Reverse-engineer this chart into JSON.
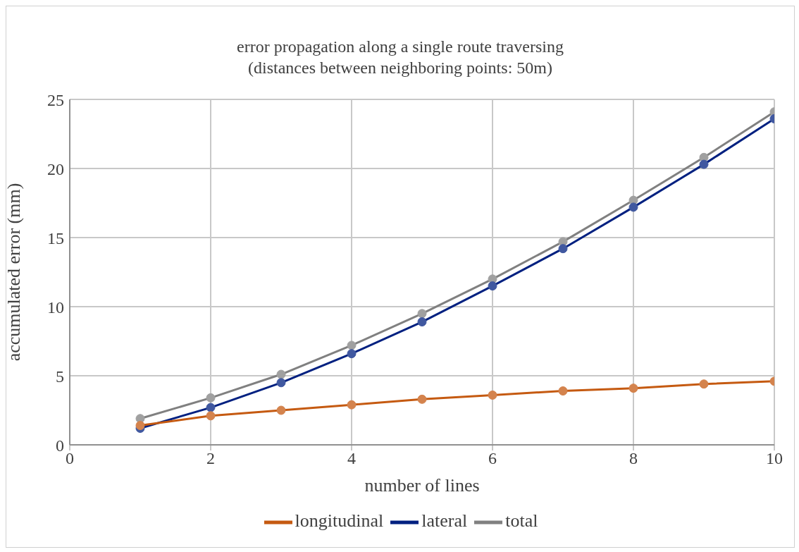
{
  "chart_data": {
    "type": "line",
    "title": "error propagation along a single route traversing\n(distances between neighboring points: 50m)",
    "xlabel": "number of lines",
    "ylabel": "accumulated error (mm)",
    "x": [
      1,
      2,
      3,
      4,
      5,
      6,
      7,
      8,
      9,
      10
    ],
    "series": [
      {
        "name": "longitudinal",
        "color": "#c55a11",
        "values": [
          1.4,
          2.1,
          2.5,
          2.9,
          3.3,
          3.6,
          3.9,
          4.1,
          4.4,
          4.6
        ]
      },
      {
        "name": "lateral",
        "color": "#002080",
        "values": [
          1.2,
          2.7,
          4.5,
          6.6,
          8.9,
          11.5,
          14.2,
          17.2,
          20.3,
          23.6
        ]
      },
      {
        "name": "total",
        "color": "#808080",
        "values": [
          1.9,
          3.4,
          5.1,
          7.2,
          9.5,
          12.0,
          14.7,
          17.7,
          20.8,
          24.1
        ]
      }
    ],
    "xlim": [
      0,
      10
    ],
    "xticks": [
      0,
      2,
      4,
      6,
      8,
      10
    ],
    "ylim": [
      0,
      25
    ],
    "yticks": [
      0,
      5,
      10,
      15,
      20,
      25
    ],
    "grid": true,
    "legend": "bottom",
    "marker": "circle",
    "line_style": "solid"
  }
}
